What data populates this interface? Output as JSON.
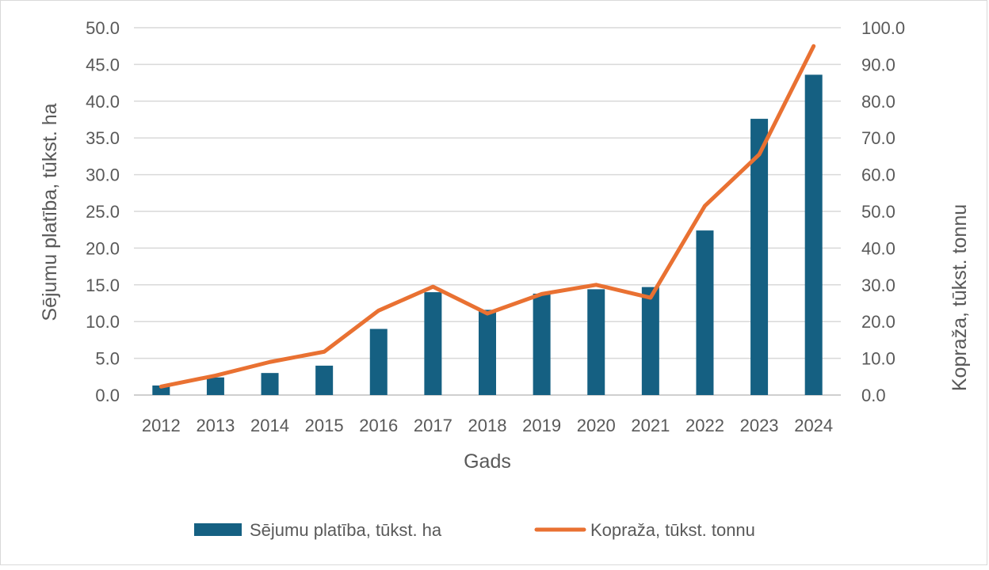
{
  "chart_data": {
    "type": "bar",
    "title": "",
    "xlabel": "Gads",
    "ylabel_left": "Sējumu platība, tūkst. ha",
    "ylabel_right": "Kopraža, tūkst. tonnu",
    "categories": [
      "2012",
      "2013",
      "2014",
      "2015",
      "2016",
      "2017",
      "2018",
      "2019",
      "2020",
      "2021",
      "2022",
      "2023",
      "2024"
    ],
    "series": [
      {
        "name": "Sējumu platība, tūkst. ha",
        "type": "bar",
        "axis": "left",
        "color": "#156082",
        "values": [
          1.3,
          2.4,
          3.0,
          4.0,
          9.0,
          14.0,
          11.6,
          13.8,
          14.4,
          14.7,
          22.4,
          37.6,
          43.6
        ]
      },
      {
        "name": "Kopraža, tūkst. tonnu",
        "type": "line",
        "axis": "right",
        "color": "#e97132",
        "values": [
          2.3,
          5.3,
          9.0,
          11.8,
          23.0,
          29.5,
          22.2,
          27.5,
          30.0,
          26.5,
          51.5,
          65.5,
          95.0
        ]
      }
    ],
    "ylim_left": [
      0,
      50
    ],
    "ylim_right": [
      0,
      100
    ],
    "yticks_left": [
      "0.0",
      "5.0",
      "10.0",
      "15.0",
      "20.0",
      "25.0",
      "30.0",
      "35.0",
      "40.0",
      "45.0",
      "50.0"
    ],
    "yticks_right": [
      "0.0",
      "10.0",
      "20.0",
      "30.0",
      "40.0",
      "50.0",
      "60.0",
      "70.0",
      "80.0",
      "90.0",
      "100.0"
    ],
    "grid": true,
    "legend_position": "bottom"
  }
}
